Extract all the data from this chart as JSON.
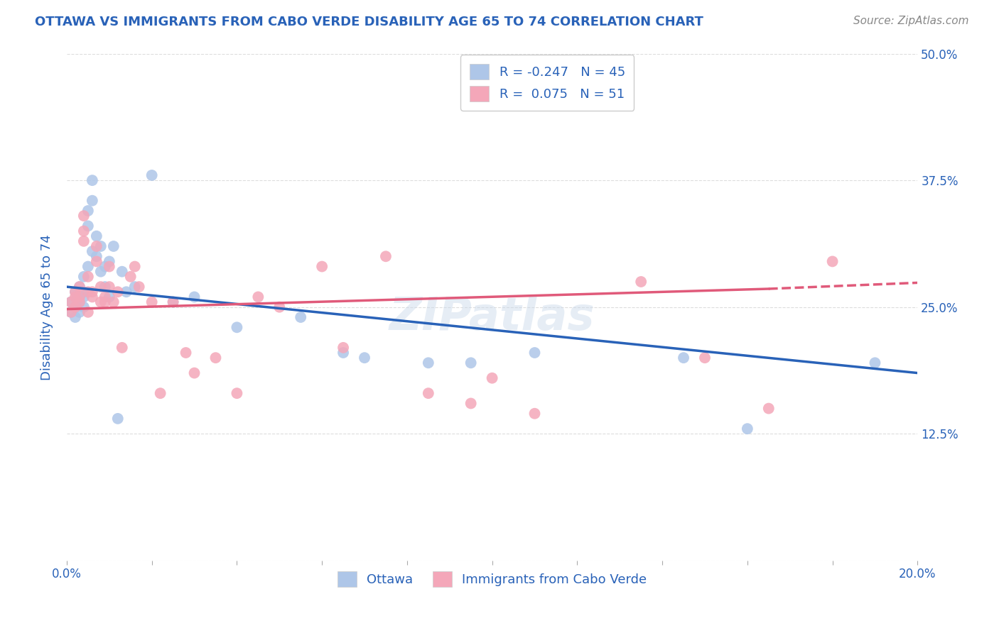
{
  "title": "OTTAWA VS IMMIGRANTS FROM CABO VERDE DISABILITY AGE 65 TO 74 CORRELATION CHART",
  "source": "Source: ZipAtlas.com",
  "ylabel": "Disability Age 65 to 74",
  "x_min": 0.0,
  "x_max": 0.2,
  "y_min": 0.0,
  "y_max": 0.5,
  "ottawa_color": "#aec6e8",
  "cabo_verde_color": "#f4a7b9",
  "ottawa_line_color": "#2962b8",
  "cabo_verde_line_color": "#e05a7a",
  "title_color": "#2962b8",
  "source_color": "#888888",
  "watermark": "ZIPatlas",
  "legend_r_ottawa": "-0.247",
  "legend_n_ottawa": "45",
  "legend_r_cabo": "0.075",
  "legend_n_cabo": "51",
  "ottawa_x": [
    0.001,
    0.001,
    0.002,
    0.002,
    0.002,
    0.003,
    0.003,
    0.003,
    0.003,
    0.004,
    0.004,
    0.004,
    0.004,
    0.005,
    0.005,
    0.005,
    0.006,
    0.006,
    0.006,
    0.007,
    0.007,
    0.008,
    0.008,
    0.009,
    0.009,
    0.01,
    0.01,
    0.011,
    0.012,
    0.013,
    0.014,
    0.016,
    0.02,
    0.025,
    0.03,
    0.04,
    0.055,
    0.065,
    0.07,
    0.085,
    0.095,
    0.11,
    0.145,
    0.16,
    0.19
  ],
  "ottawa_y": [
    0.255,
    0.245,
    0.265,
    0.25,
    0.24,
    0.26,
    0.27,
    0.255,
    0.245,
    0.265,
    0.28,
    0.25,
    0.26,
    0.33,
    0.345,
    0.29,
    0.305,
    0.355,
    0.375,
    0.3,
    0.32,
    0.285,
    0.31,
    0.29,
    0.27,
    0.295,
    0.26,
    0.31,
    0.14,
    0.285,
    0.265,
    0.27,
    0.38,
    0.255,
    0.26,
    0.23,
    0.24,
    0.205,
    0.2,
    0.195,
    0.195,
    0.205,
    0.2,
    0.13,
    0.195
  ],
  "cabo_x": [
    0.001,
    0.001,
    0.002,
    0.002,
    0.002,
    0.003,
    0.003,
    0.003,
    0.004,
    0.004,
    0.004,
    0.005,
    0.005,
    0.005,
    0.006,
    0.006,
    0.007,
    0.007,
    0.008,
    0.008,
    0.009,
    0.009,
    0.01,
    0.01,
    0.011,
    0.012,
    0.013,
    0.015,
    0.016,
    0.017,
    0.02,
    0.022,
    0.025,
    0.028,
    0.03,
    0.035,
    0.04,
    0.045,
    0.05,
    0.06,
    0.065,
    0.075,
    0.085,
    0.095,
    0.1,
    0.11,
    0.125,
    0.135,
    0.15,
    0.165,
    0.18
  ],
  "cabo_y": [
    0.255,
    0.245,
    0.26,
    0.265,
    0.25,
    0.255,
    0.27,
    0.26,
    0.315,
    0.325,
    0.34,
    0.265,
    0.28,
    0.245,
    0.265,
    0.26,
    0.31,
    0.295,
    0.255,
    0.27,
    0.26,
    0.255,
    0.29,
    0.27,
    0.255,
    0.265,
    0.21,
    0.28,
    0.29,
    0.27,
    0.255,
    0.165,
    0.255,
    0.205,
    0.185,
    0.2,
    0.165,
    0.26,
    0.25,
    0.29,
    0.21,
    0.3,
    0.165,
    0.155,
    0.18,
    0.145,
    0.49,
    0.275,
    0.2,
    0.15,
    0.295
  ],
  "ottawa_line_x0": 0.0,
  "ottawa_line_y0": 0.27,
  "ottawa_line_x1": 0.2,
  "ottawa_line_y1": 0.185,
  "cabo_line_x0": 0.0,
  "cabo_line_y0": 0.248,
  "cabo_line_x1_solid": 0.165,
  "cabo_line_y1_solid": 0.268,
  "cabo_line_x1_dash": 0.2,
  "cabo_line_y1_dash": 0.274,
  "background_color": "#ffffff",
  "grid_color": "#dddddd"
}
